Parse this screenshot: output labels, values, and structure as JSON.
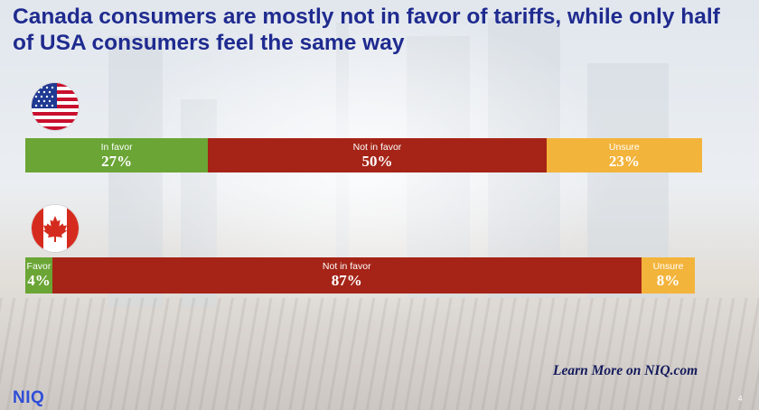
{
  "slide": {
    "title": "Canada consumers are mostly not in favor of tariffs, while only half of USA consumers feel the same way",
    "learn_more": "Learn More on NIQ.com",
    "logo": "NIQ",
    "page_number": "4"
  },
  "colors": {
    "title": "#1f2b8f",
    "in_favor": "#6aa535",
    "not_in_favor": "#a52417",
    "unsure": "#f3b43c"
  },
  "icons": [
    "usa-flag-icon",
    "canada-flag-icon"
  ],
  "chart_data": {
    "type": "bar",
    "orientation": "horizontal",
    "stacked": true,
    "categories": [
      "USA",
      "Canada"
    ],
    "series": [
      {
        "name": "In favor",
        "values": [
          27,
          4
        ],
        "labels": [
          "In favor",
          "Favor"
        ],
        "display": [
          "27%",
          "4%"
        ]
      },
      {
        "name": "Not in favor",
        "values": [
          50,
          87
        ],
        "labels": [
          "Not in favor",
          "Not in favor"
        ],
        "display": [
          "50%",
          "87%"
        ]
      },
      {
        "name": "Unsure",
        "values": [
          23,
          8
        ],
        "labels": [
          "Unsure",
          "Unsure"
        ],
        "display": [
          "23%",
          "8%"
        ]
      }
    ],
    "xlim": [
      0,
      100
    ],
    "grid": false,
    "legend": "none"
  }
}
